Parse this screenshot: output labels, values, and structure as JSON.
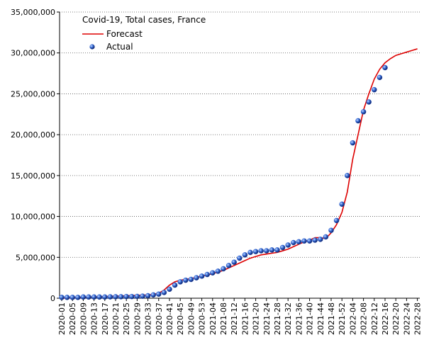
{
  "chart_data": {
    "type": "line",
    "title": "Covid-19, Total cases, France",
    "categories": [
      "2020-01",
      null,
      "2020-05",
      null,
      "2020-09",
      null,
      "2020-13",
      null,
      "2020-17",
      null,
      "2020-21",
      null,
      "2020-25",
      null,
      "2020-29",
      null,
      "2020-33",
      null,
      "2020-37",
      null,
      "2020-41",
      null,
      "2020-45",
      null,
      "2020-49",
      null,
      "2020-53",
      null,
      "2021-04",
      null,
      "2021-08",
      null,
      "2021-12",
      null,
      "2021-16",
      null,
      "2021-20",
      null,
      "2021-24",
      null,
      "2021-28",
      null,
      "2021-32",
      null,
      "2021-36",
      null,
      "2021-40",
      null,
      "2021-44",
      null,
      "2021-48",
      null,
      "2021-52",
      null,
      "2022-04",
      null,
      "2022-08",
      null,
      "2022-12",
      null,
      "2022-16",
      null,
      "2022-20",
      null,
      "2022-24",
      null,
      "2022-28"
    ],
    "series": [
      {
        "name": "Forecast",
        "kind": "line",
        "color": "#dd0000",
        "values": [
          0,
          20000,
          50000,
          80000,
          100000,
          130000,
          150000,
          180000,
          200000,
          230000,
          250000,
          280000,
          300000,
          330000,
          350000,
          380000,
          400000,
          480000,
          600000,
          1000000,
          1600000,
          2000000,
          2200000,
          2300000,
          2400000,
          2550000,
          2700000,
          2850000,
          3000000,
          3200000,
          3400000,
          3700000,
          4000000,
          4300000,
          4600000,
          4900000,
          5100000,
          5300000,
          5400000,
          5500000,
          5600000,
          5800000,
          6000000,
          6300000,
          6600000,
          6900000,
          7100000,
          7400000,
          7400000,
          7300000,
          8000000,
          9000000,
          10500000,
          13000000,
          17000000,
          20000000,
          23000000,
          25000000,
          26800000,
          28000000,
          28800000,
          29300000,
          29700000,
          29900000,
          30100000,
          30300000,
          30500000
        ]
      },
      {
        "name": "Actual",
        "kind": "marker",
        "color": "#2255cc",
        "values": [
          100000,
          100000,
          100000,
          100000,
          150000,
          150000,
          150000,
          150000,
          150000,
          170000,
          180000,
          180000,
          200000,
          200000,
          220000,
          250000,
          300000,
          400000,
          500000,
          700000,
          1100000,
          1600000,
          2000000,
          2200000,
          2300000,
          2500000,
          2700000,
          2900000,
          3100000,
          3300000,
          3600000,
          4000000,
          4400000,
          4900000,
          5300000,
          5600000,
          5700000,
          5800000,
          5800000,
          5900000,
          5900000,
          6200000,
          6500000,
          6800000,
          6900000,
          7000000,
          7000000,
          7100000,
          7200000,
          7500000,
          8300000,
          9500000,
          11500000,
          15000000,
          19000000,
          21700000,
          22800000,
          24000000,
          25500000,
          27000000,
          28200000,
          null,
          null,
          null,
          null,
          null,
          null
        ]
      }
    ],
    "ylim": [
      0,
      35000000
    ],
    "yticks": [
      {
        "value": 0,
        "label": "0"
      },
      {
        "value": 5000000,
        "label": "5,000,000"
      },
      {
        "value": 10000000,
        "label": "10,000,000"
      },
      {
        "value": 15000000,
        "label": "15,000,000"
      },
      {
        "value": 20000000,
        "label": "20,000,000"
      },
      {
        "value": 25000000,
        "label": "25,000,000"
      },
      {
        "value": 30000000,
        "label": "30,000,000"
      },
      {
        "value": 35000000,
        "label": "35,000,000"
      }
    ],
    "grid": true,
    "legend": "top-left"
  }
}
